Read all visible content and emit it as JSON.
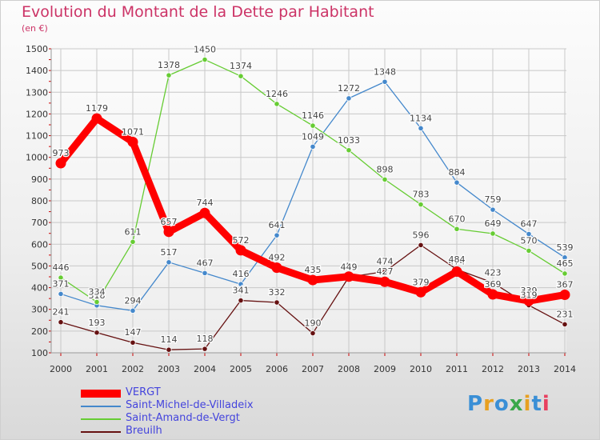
{
  "header": {
    "title": "Evolution du Montant de la Dette par Habitant",
    "subtitle": "(en €)"
  },
  "logo": {
    "text": "Proxiti",
    "colors": [
      "#3a8fd6",
      "#e8a020",
      "#3a8fd6",
      "#3aa84a",
      "#e8a020",
      "#3a8fd6",
      "#e84060"
    ]
  },
  "chart_data": {
    "type": "line",
    "title": "Evolution du Montant de la Dette par Habitant",
    "ylabel": "(en €)",
    "x": [
      "2000",
      "2001",
      "2002",
      "2003",
      "2004",
      "2005",
      "2006",
      "2007",
      "2008",
      "2009",
      "2010",
      "2011",
      "2012",
      "2013",
      "2014"
    ],
    "ylim": [
      100,
      1500
    ],
    "yticks": [
      100,
      200,
      300,
      400,
      500,
      600,
      700,
      800,
      900,
      1000,
      1100,
      1200,
      1300,
      1400,
      1500
    ],
    "grid": true,
    "legend_position": "bottom",
    "series": [
      {
        "name": "VERGT",
        "color": "#ff0000",
        "values": [
          973,
          1179,
          1071,
          657,
          744,
          572,
          492,
          435,
          451,
          427,
          379,
          474,
          369,
          339,
          367
        ]
      },
      {
        "name": "Saint-Michel-de-Villadeix",
        "color": "#4488cc",
        "values": [
          371,
          318,
          294,
          517,
          467,
          416,
          641,
          1049,
          1272,
          1348,
          1134,
          884,
          759,
          647,
          539
        ]
      },
      {
        "name": "Saint-Amand-de-Vergt",
        "color": "#66cc33",
        "values": [
          446,
          334,
          611,
          1378,
          1450,
          1374,
          1246,
          1146,
          1033,
          898,
          783,
          670,
          649,
          570,
          465
        ]
      },
      {
        "name": "Breuilh",
        "color": "#661111",
        "values": [
          241,
          193,
          147,
          114,
          118,
          341,
          332,
          190,
          449,
          474,
          596,
          484,
          423,
          319,
          231
        ]
      }
    ]
  }
}
